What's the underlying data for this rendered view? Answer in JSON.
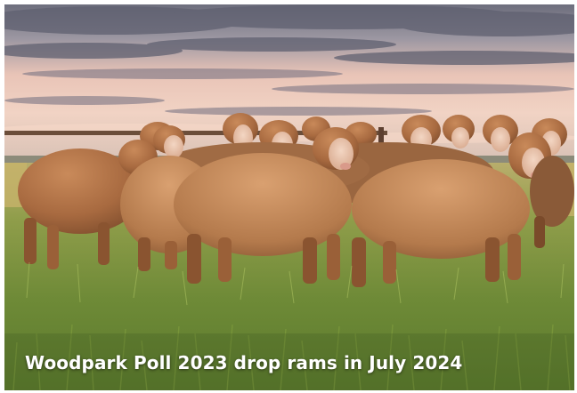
{
  "caption": "Woodpark Poll 2023 drop rams in July 2024"
}
